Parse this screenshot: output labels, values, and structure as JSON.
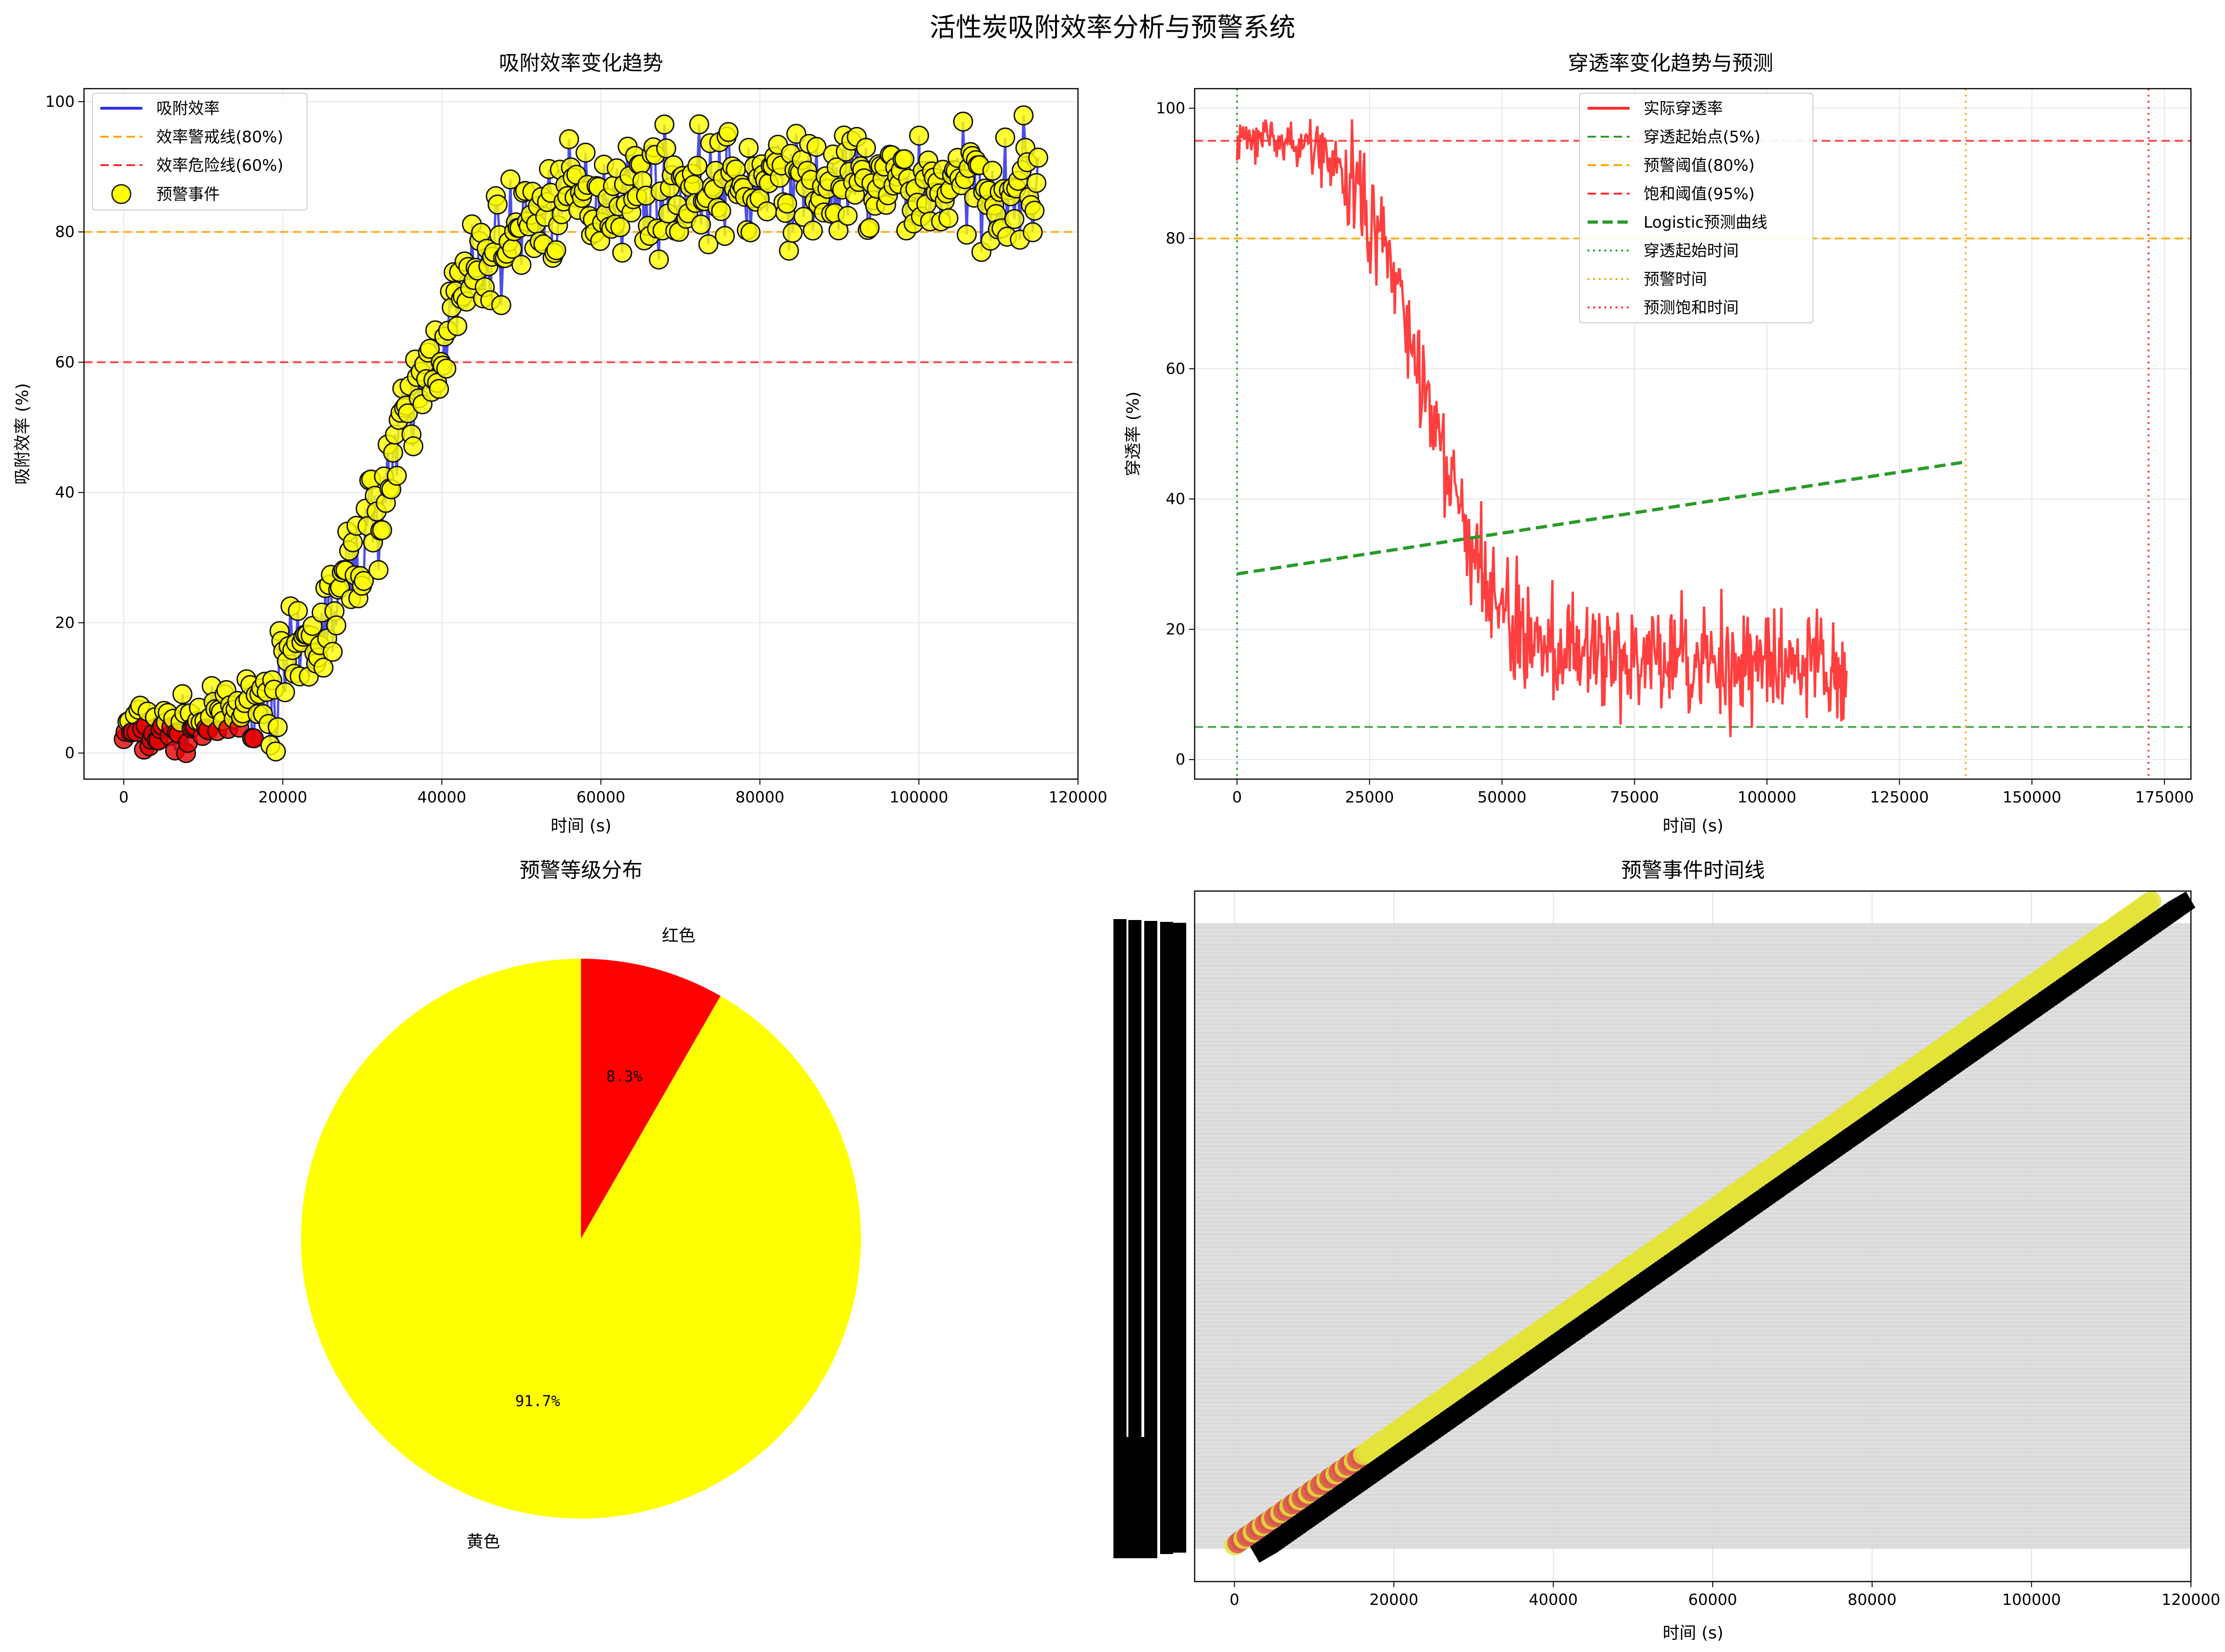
{
  "figure": {
    "suptitle": "活性炭吸附效率分析与预警系统"
  },
  "chart_data": [
    {
      "id": "efficiency",
      "type": "line",
      "title": "吸附效率变化趋势",
      "xlabel": "时间 (s)",
      "ylabel": "吸附效率 (%)",
      "xlim": [
        -5000,
        120000
      ],
      "ylim": [
        -4,
        102
      ],
      "xticks": [
        0,
        20000,
        40000,
        60000,
        80000,
        100000,
        120000
      ],
      "yticks": [
        0,
        20,
        40,
        60,
        80,
        100
      ],
      "grid": true,
      "legend_position": "upper-left",
      "legend": [
        "吸附效率",
        "效率警戒线(80%)",
        "效率危险线(60%)",
        "预警事件"
      ],
      "series": [
        {
          "name": "吸附效率",
          "color": "#2f2fe6",
          "x_start": 0,
          "x_end": 115000,
          "logistic": {
            "low": 3,
            "high": 87,
            "x0": 34000,
            "k": 0.00016
          },
          "noise": 6
        }
      ],
      "hlines": [
        {
          "name": "效率警戒线(80%)",
          "y": 80,
          "color": "#ffa500",
          "style": "dashed"
        },
        {
          "name": "效率危险线(60%)",
          "y": 60,
          "color": "#ff2a2a",
          "style": "dashed"
        }
      ],
      "markers": [
        {
          "name": "预警事件",
          "color": "#ffff00"
        },
        {
          "name": "red-events",
          "color": "#e60000",
          "x_range": [
            0,
            18000
          ]
        }
      ]
    },
    {
      "id": "breakthrough",
      "type": "line",
      "title": "穿透率变化趋势与预测",
      "xlabel": "时间 (s)",
      "ylabel": "穿透率 (%)",
      "xlim": [
        -8000,
        180000
      ],
      "ylim": [
        -3,
        103
      ],
      "xticks": [
        0,
        25000,
        50000,
        75000,
        100000,
        125000,
        150000,
        175000
      ],
      "yticks": [
        0,
        20,
        40,
        60,
        80,
        100
      ],
      "grid": true,
      "legend_position": "upper-center",
      "legend": [
        "实际穿透率",
        "穿透起始点(5%)",
        "预警阈值(80%)",
        "饱和阈值(95%)",
        "Logistic预测曲线",
        "穿透起始时间",
        "预警时间",
        "预测饱和时间"
      ],
      "series": [
        {
          "name": "实际穿透率",
          "color": "#ff2a2a",
          "x_start": 0,
          "x_end": 115000,
          "logistic": {
            "low": 15,
            "high": 96,
            "x0": 36000,
            "k": -0.00016
          },
          "noise": 6
        },
        {
          "name": "Logistic预测曲线",
          "color": "#2a9a2a",
          "x": [
            0,
            137500
          ],
          "y": [
            28.5,
            45.7
          ]
        }
      ],
      "hlines": [
        {
          "name": "穿透起始点(5%)",
          "y": 5,
          "color": "#2a9a2a",
          "style": "dashed"
        },
        {
          "name": "预警阈值(80%)",
          "y": 80,
          "color": "#ffa500",
          "style": "dashed"
        },
        {
          "name": "饱和阈值(95%)",
          "y": 95,
          "color": "#ff2a2a",
          "style": "dashed"
        }
      ],
      "vlines": [
        {
          "name": "穿透起始时间",
          "x": 0,
          "color": "#2a9a2a",
          "style": "dotted"
        },
        {
          "name": "预警时间",
          "x": 137500,
          "color": "#ffa500",
          "style": "dotted"
        },
        {
          "name": "预测饱和时间",
          "x": 172000,
          "color": "#ff2a2a",
          "style": "dotted"
        }
      ]
    },
    {
      "id": "levels",
      "type": "pie",
      "title": "预警等级分布",
      "slices": [
        {
          "label": "红色",
          "value": 8.3,
          "pct_label": "8.3%",
          "color": "#ff0000"
        },
        {
          "label": "黄色",
          "value": 91.7,
          "pct_label": "91.7%",
          "color": "#ffff00"
        }
      ]
    },
    {
      "id": "timeline",
      "type": "scatter",
      "title": "预警事件时间线",
      "xlabel": "时间 (s)",
      "xlim": [
        -5000,
        120000
      ],
      "xticks": [
        0,
        20000,
        40000,
        60000,
        80000,
        100000,
        120000
      ],
      "grid": true,
      "x_range": [
        0,
        115000
      ],
      "colors": {
        "yellow": "#e3e33a",
        "red": "#d9534f",
        "label_ink": "#000000",
        "band": "#dcdcdc"
      }
    }
  ]
}
